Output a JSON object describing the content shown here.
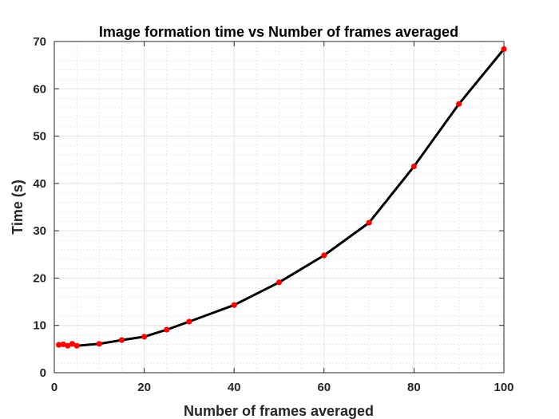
{
  "chart_data": {
    "type": "line",
    "title": "Image formation time vs Number of frames averaged",
    "xlabel": "Number of frames averaged",
    "ylabel": "Time (s)",
    "xlim": [
      0,
      100
    ],
    "ylim": [
      0,
      70
    ],
    "x_ticks": [
      0,
      20,
      40,
      60,
      80,
      100
    ],
    "y_ticks": [
      0,
      10,
      20,
      30,
      40,
      50,
      60,
      70
    ],
    "x_tick_labels": [
      "0",
      "20",
      "40",
      "60",
      "80",
      "100"
    ],
    "y_tick_labels": [
      "0",
      "10",
      "20",
      "30",
      "40",
      "50",
      "60",
      "70"
    ],
    "grid": true,
    "minor_grid": true,
    "line_color": "#000000",
    "marker_color": "#ff0000",
    "series": [
      {
        "x": [
          1,
          2,
          3,
          4,
          5,
          10,
          15,
          20,
          25,
          30,
          40,
          50,
          60,
          70,
          80,
          90,
          100
        ],
        "y": [
          5.9,
          6.0,
          5.7,
          6.1,
          5.7,
          6.1,
          6.9,
          7.6,
          9.1,
          10.8,
          14.3,
          19.1,
          24.8,
          31.7,
          43.6,
          56.8,
          68.4
        ]
      }
    ]
  }
}
